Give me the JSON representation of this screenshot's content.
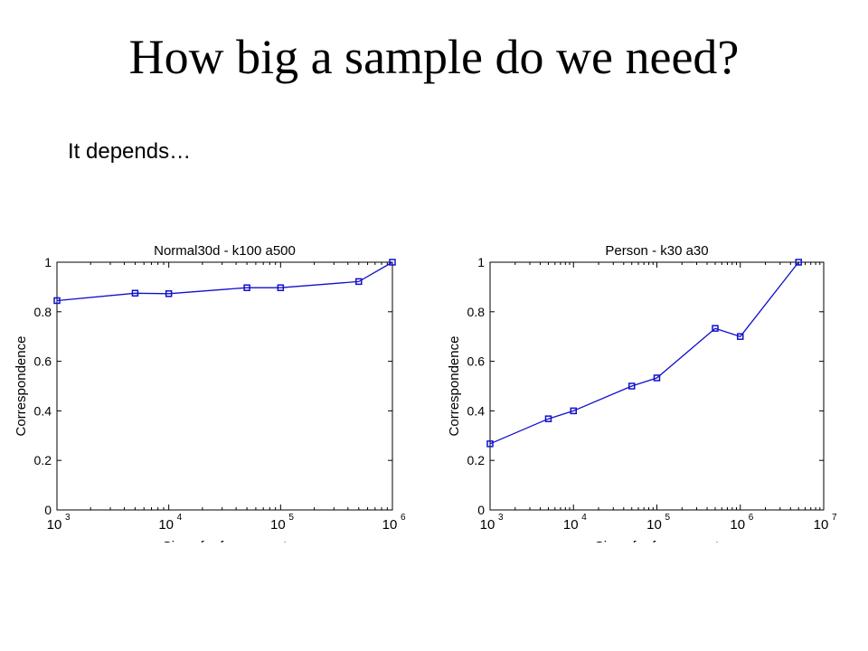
{
  "slide": {
    "title": "How big a sample do we need?",
    "body": "It depends…"
  },
  "chart_data": [
    {
      "type": "line",
      "title": "Normal30d - k100 a500",
      "xlabel": "Size of reference set",
      "ylabel": "Correspondence",
      "xscale": "log",
      "xlim": [
        1000,
        1000000
      ],
      "ylim": [
        0,
        1
      ],
      "x_ticks": [
        1000,
        10000,
        100000,
        1000000
      ],
      "x_tick_labels": [
        {
          "base": "10",
          "exp": "3"
        },
        {
          "base": "10",
          "exp": "4"
        },
        {
          "base": "10",
          "exp": "5"
        },
        {
          "base": "10",
          "exp": "6"
        }
      ],
      "y_ticks": [
        0,
        0.2,
        0.4,
        0.6,
        0.8,
        1
      ],
      "y_tick_labels": [
        "0",
        "0.2",
        "0.4",
        "0.6",
        "0.8",
        "1"
      ],
      "grid": false,
      "series": [
        {
          "color": "#1010cc",
          "marker": "square",
          "x": [
            1000,
            5000,
            10000,
            50000,
            100000,
            500000,
            1000000
          ],
          "y": [
            0.845,
            0.875,
            0.873,
            0.897,
            0.897,
            0.922,
            1.0
          ]
        }
      ]
    },
    {
      "type": "line",
      "title": "Person - k30 a30",
      "xlabel": "Size of reference set",
      "ylabel": "Correspondence",
      "xscale": "log",
      "xlim": [
        1000,
        10000000
      ],
      "ylim": [
        0,
        1
      ],
      "x_ticks": [
        1000,
        10000,
        100000,
        1000000,
        10000000
      ],
      "x_tick_labels": [
        {
          "base": "10",
          "exp": "3"
        },
        {
          "base": "10",
          "exp": "4"
        },
        {
          "base": "10",
          "exp": "5"
        },
        {
          "base": "10",
          "exp": "6"
        },
        {
          "base": "10",
          "exp": "7"
        }
      ],
      "y_ticks": [
        0,
        0.2,
        0.4,
        0.6,
        0.8,
        1
      ],
      "y_tick_labels": [
        "0",
        "0.2",
        "0.4",
        "0.6",
        "0.8",
        "1"
      ],
      "grid": false,
      "series": [
        {
          "color": "#1010cc",
          "marker": "square",
          "x": [
            1000,
            5000,
            10000,
            50000,
            100000,
            500000,
            1000000,
            5000000
          ],
          "y": [
            0.267,
            0.368,
            0.4,
            0.5,
            0.533,
            0.733,
            0.7,
            1.0
          ]
        }
      ]
    }
  ]
}
